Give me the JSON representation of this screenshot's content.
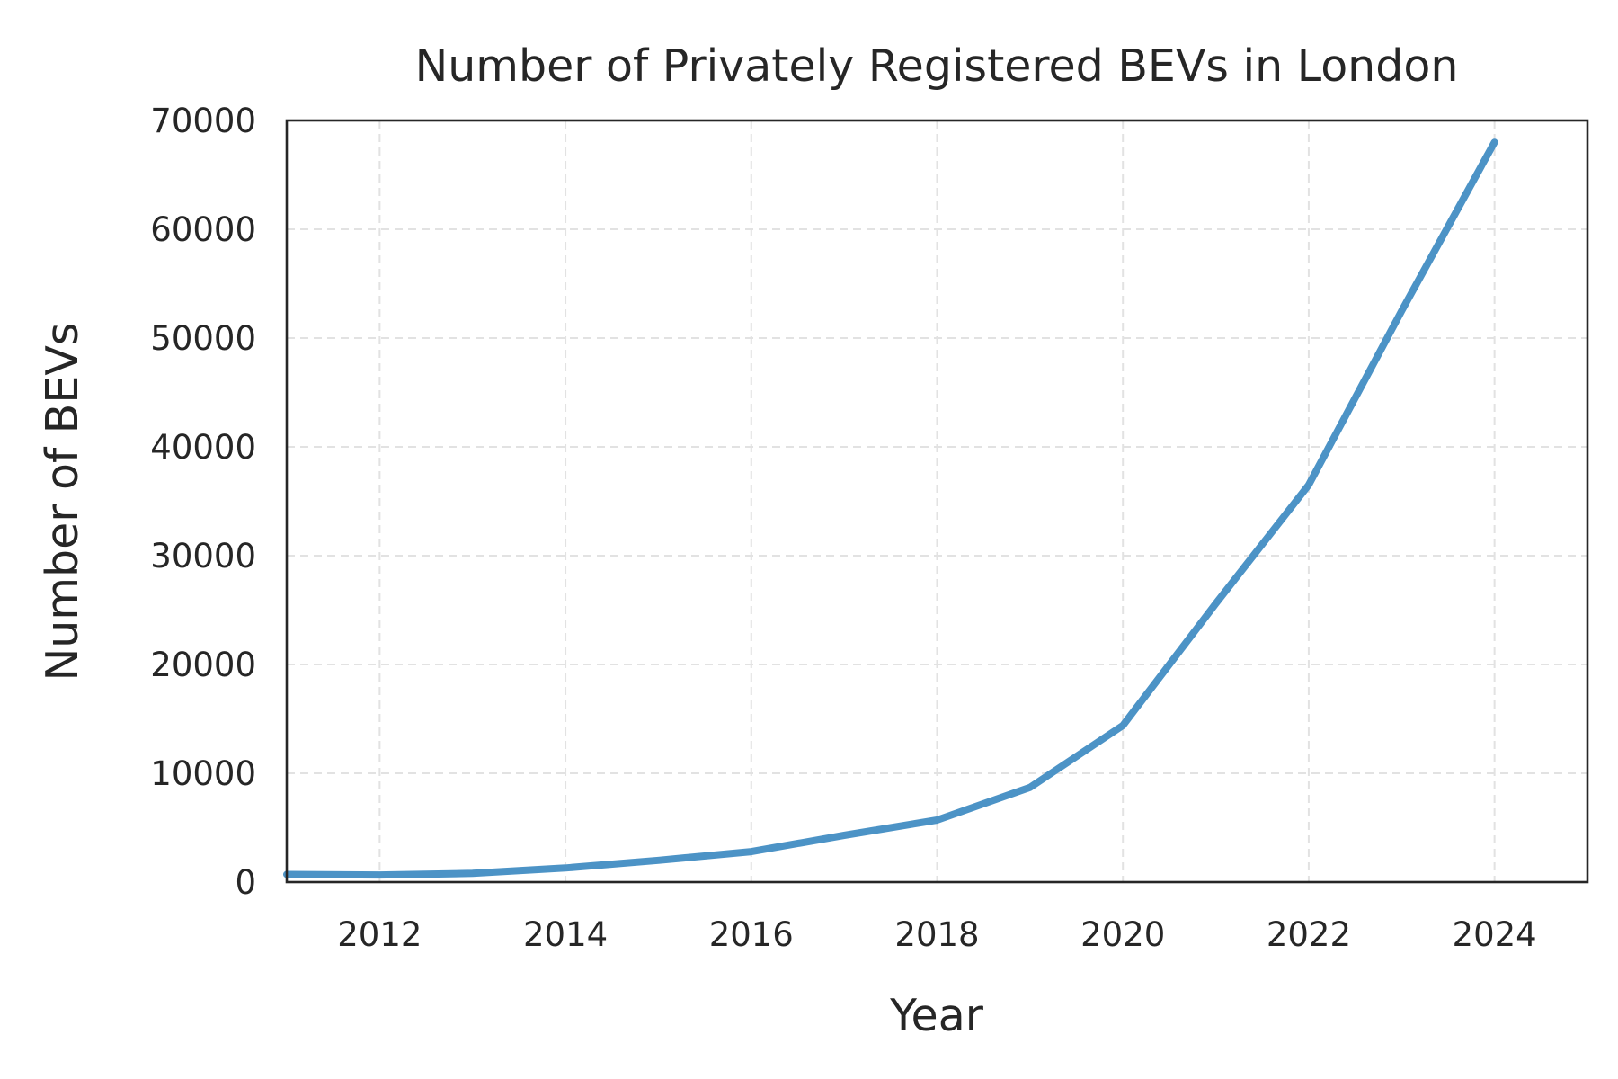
{
  "chart_data": {
    "type": "line",
    "title": "Number of Privately Registered BEVs in London",
    "xlabel": "Year",
    "ylabel": "Number of BEVs",
    "xlim": [
      2011,
      2025
    ],
    "ylim": [
      0,
      70000
    ],
    "x_ticks": [
      "2012",
      "2014",
      "2016",
      "2018",
      "2020",
      "2022",
      "2024"
    ],
    "y_ticks": [
      "0",
      "10000",
      "20000",
      "30000",
      "40000",
      "50000",
      "60000",
      "70000"
    ],
    "grid": true,
    "legend": "none",
    "series": [
      {
        "color": "#4c93c6",
        "x": [
          2011,
          2012,
          2013,
          2014,
          2015,
          2016,
          2017,
          2018,
          2019,
          2020,
          2021,
          2022,
          2023,
          2024
        ],
        "values": [
          700,
          650,
          800,
          1300,
          2000,
          2800,
          4300,
          5700,
          8700,
          14400,
          25600,
          36500,
          52500,
          68000
        ]
      }
    ]
  }
}
